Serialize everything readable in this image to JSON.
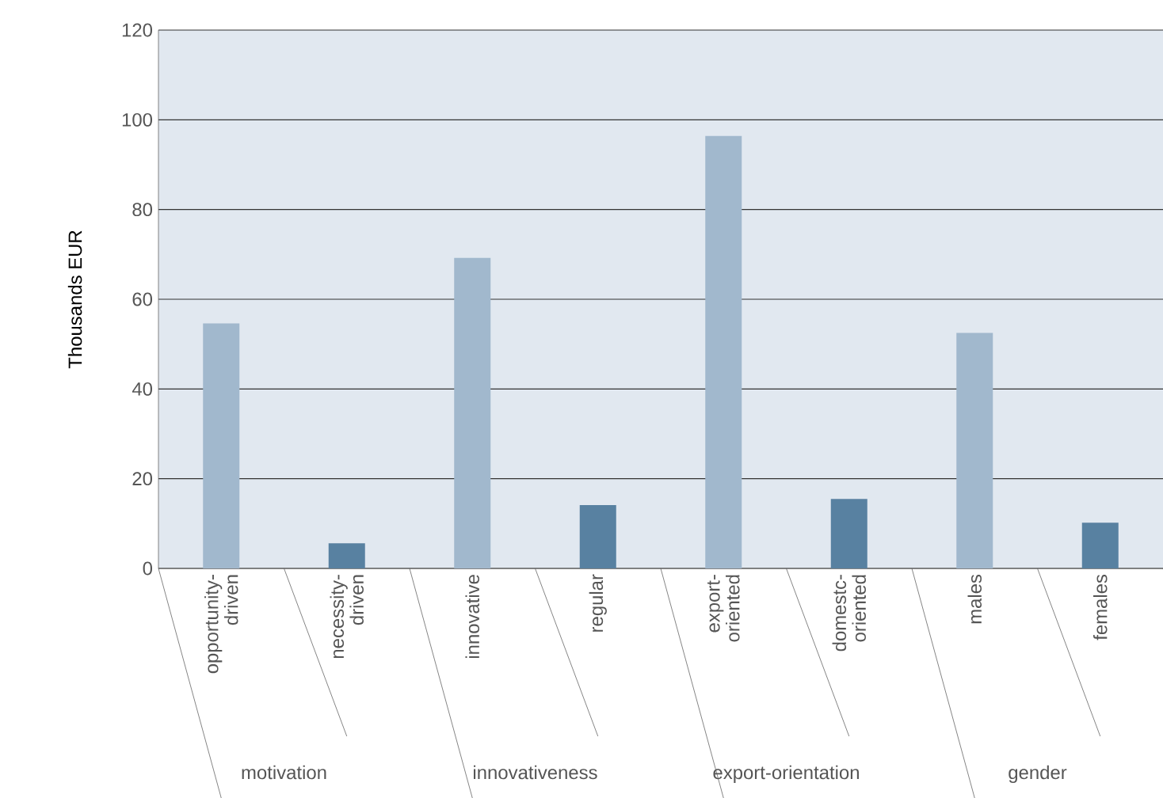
{
  "chart_data": {
    "type": "bar",
    "ylabel": "Thousands EUR",
    "categories": [
      "opportunity-driven",
      "necessity-driven",
      "innovative",
      "regular",
      "export-oriented",
      "domestc-oriented",
      "males",
      "females"
    ],
    "values": [
      54.6,
      5.6,
      69.2,
      14.1,
      96.4,
      15.5,
      52.5,
      10.2
    ],
    "colors": [
      "#a1b8cd",
      "#5881a1",
      "#a1b8cd",
      "#5881a1",
      "#a1b8cd",
      "#5881a1",
      "#a1b8cd",
      "#5881a1"
    ],
    "ylim": [
      0,
      120
    ],
    "yticks": [
      0,
      20,
      40,
      60,
      80,
      100,
      120
    ],
    "grid": "y",
    "annotations": [
      "motivation",
      "innovativeness",
      "export-orientation",
      "gender"
    ]
  }
}
